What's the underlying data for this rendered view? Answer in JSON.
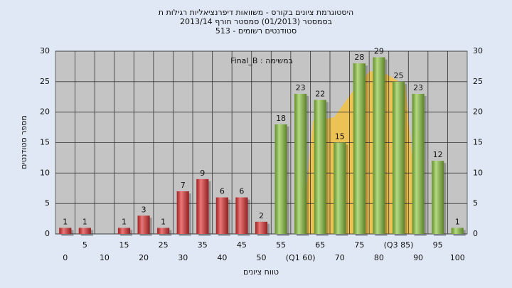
{
  "chart_data": {
    "type": "bar",
    "title": "היסטוגרמת ציונים בקורס - משוואות דיפרנציאליות רגילות ת",
    "subtitle": "בסמסטר (01/2013) סמסטר חורף 2013/14",
    "subtitle2": "סטודנטים רשומים - 513",
    "annotation": "במשימה : Final_B",
    "x_label": "טווח ציונים",
    "y_label": "מספר סטודנטים",
    "categories": [
      "0",
      "5",
      "10",
      "15",
      "20",
      "25",
      "30",
      "35",
      "40",
      "45",
      "50",
      "55",
      "(Q1 60)",
      "65",
      "70",
      "75",
      "80",
      "(Q3 85)",
      "90",
      "95",
      "100"
    ],
    "values": [
      1,
      1,
      null,
      1,
      3,
      1,
      7,
      9,
      6,
      6,
      2,
      18,
      23,
      22,
      15,
      28,
      29,
      25,
      23,
      12,
      1
    ],
    "colors": [
      "#e03030",
      "#e03030",
      "#e03030",
      "#e03030",
      "#e03030",
      "#e03030",
      "#e03030",
      "#e03030",
      "#e03030",
      "#e03030",
      "#e03030",
      "#8cc63f",
      "#8cc63f",
      "#8cc63f",
      "#8cc63f",
      "#8cc63f",
      "#8cc63f",
      "#8cc63f",
      "#8cc63f",
      "#8cc63f",
      "#8cc63f"
    ],
    "ylim": [
      0,
      30
    ],
    "yticks": [
      0,
      5,
      10,
      15,
      20,
      25,
      30
    ],
    "grid": true
  }
}
